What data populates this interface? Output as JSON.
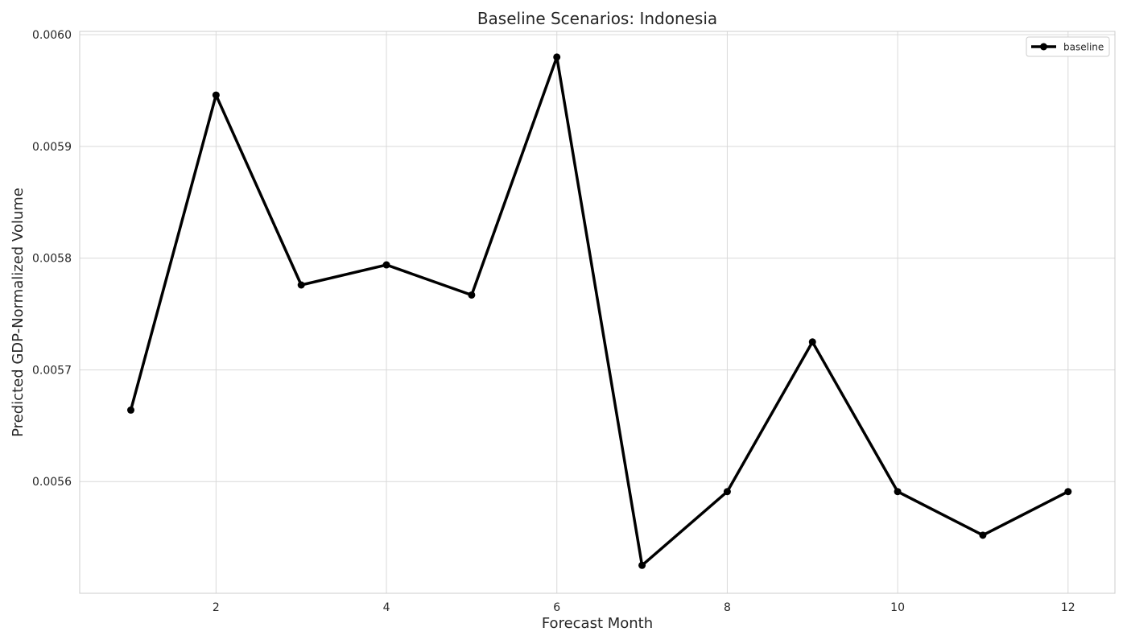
{
  "chart_data": {
    "type": "line",
    "title": "Baseline Scenarios: Indonesia",
    "xlabel": "Forecast Month",
    "ylabel": "Predicted GDP-Normalized Volume",
    "x": [
      1,
      2,
      3,
      4,
      5,
      6,
      7,
      8,
      9,
      10,
      11,
      12
    ],
    "series": [
      {
        "name": "baseline",
        "color": "#000000",
        "marker": "circle",
        "values": [
          0.005664,
          0.005946,
          0.005776,
          0.005794,
          0.005767,
          0.00598,
          0.005525,
          0.005591,
          0.005725,
          0.005591,
          0.005552,
          0.005591
        ]
      }
    ],
    "xlim": [
      0.4,
      12.55
    ],
    "ylim": [
      0.0055,
      0.006003
    ],
    "xticks": [
      2,
      4,
      6,
      8,
      10,
      12
    ],
    "xtick_labels": [
      "2",
      "4",
      "6",
      "8",
      "10",
      "12"
    ],
    "yticks": [
      0.0056,
      0.0057,
      0.0058,
      0.0059,
      0.006
    ],
    "ytick_labels": [
      "0.0056",
      "0.0057",
      "0.0058",
      "0.0059",
      "0.0060"
    ],
    "grid": true,
    "legend_position": "top-right"
  }
}
